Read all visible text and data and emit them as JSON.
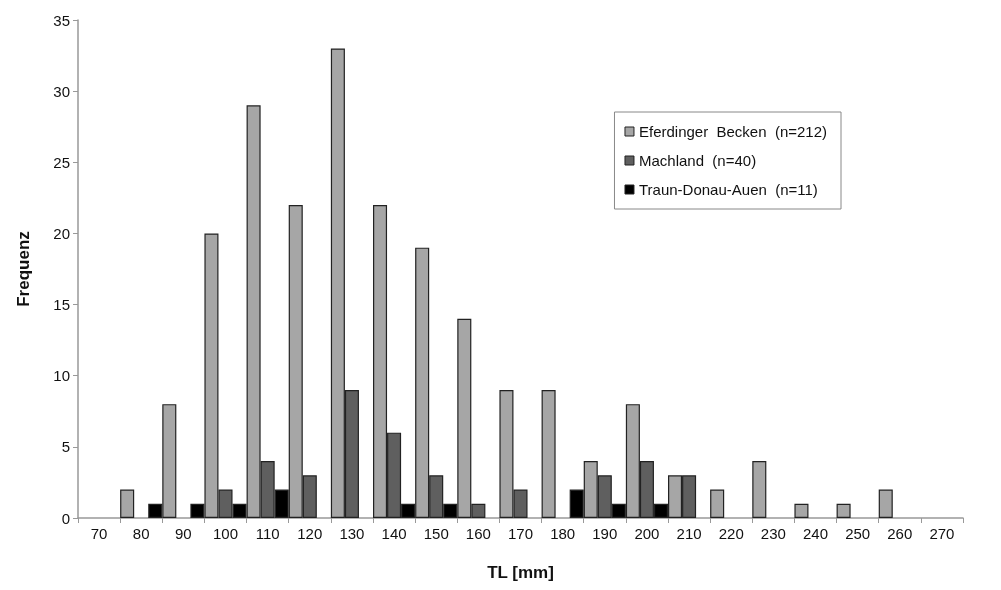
{
  "chart_data": {
    "type": "bar",
    "xlabel": "TL [mm]",
    "ylabel": "Frequenz",
    "categories": [
      "70",
      "80",
      "90",
      "100",
      "110",
      "120",
      "130",
      "140",
      "150",
      "160",
      "170",
      "180",
      "190",
      "200",
      "210",
      "220",
      "230",
      "240",
      "250",
      "260",
      "270"
    ],
    "series": [
      {
        "name": "Eferdinger  Becken  (n=212)",
        "color": "#a6a6a6",
        "values": [
          0,
          2,
          8,
          20,
          29,
          22,
          33,
          22,
          19,
          14,
          9,
          9,
          4,
          8,
          3,
          2,
          4,
          1,
          1,
          2,
          0
        ]
      },
      {
        "name": "Machland  (n=40)",
        "color": "#5f5f5f",
        "values": [
          0,
          0,
          0,
          2,
          4,
          3,
          9,
          6,
          3,
          1,
          2,
          0,
          3,
          4,
          3,
          0,
          0,
          0,
          0,
          0,
          0
        ]
      },
      {
        "name": "Traun-Donau-Auen  (n=11)",
        "color": "#000000",
        "values": [
          0,
          1,
          1,
          1,
          2,
          0,
          0,
          1,
          1,
          0,
          0,
          2,
          1,
          1,
          0,
          0,
          0,
          0,
          0,
          0,
          0
        ]
      }
    ],
    "ylim": [
      0,
      35
    ],
    "yticks": [
      0,
      5,
      10,
      15,
      20,
      25,
      30,
      35
    ],
    "grid": false,
    "legend": "top right"
  }
}
